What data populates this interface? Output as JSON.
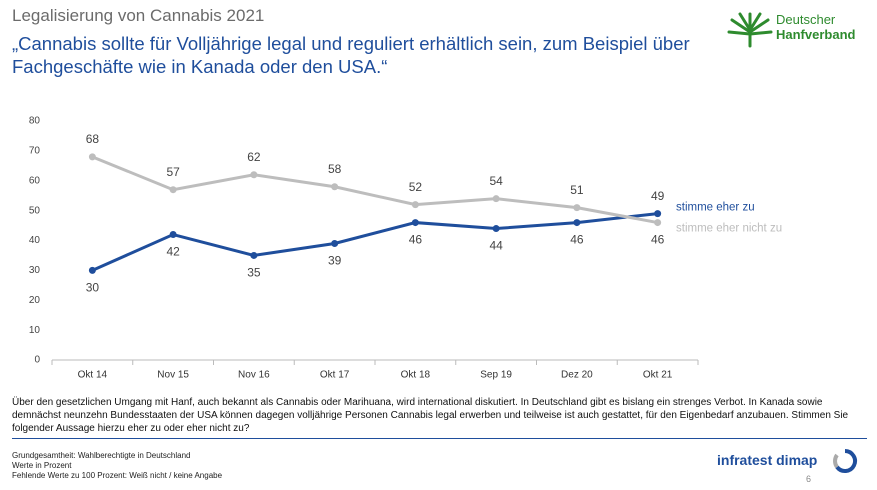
{
  "chart_data": {
    "type": "line",
    "supertitle": "Legalisierung von Cannabis 2021",
    "title": "„Cannabis sollte für Volljährige legal und reguliert erhältlich sein, zum Beispiel über Fachgeschäfte wie in Kanada oder den USA.“",
    "logo": [
      "Deutscher",
      "Hanfverband"
    ],
    "categories": [
      "Okt 14",
      "Nov 15",
      "Nov 16",
      "Okt 17",
      "Okt 18",
      "Sep 19",
      "Dez 20",
      "Okt 21"
    ],
    "series": [
      {
        "name": "stimme eher zu",
        "color": "#1f4e9c",
        "values": [
          30,
          42,
          35,
          39,
          46,
          44,
          46,
          49
        ]
      },
      {
        "name": "stimme eher nicht zu",
        "color": "#bdbdbd",
        "values": [
          68,
          57,
          62,
          58,
          52,
          54,
          51,
          46
        ]
      }
    ],
    "ylim": [
      0,
      80
    ],
    "yticks": [
      0,
      10,
      20,
      30,
      40,
      50,
      60,
      70,
      80
    ],
    "grid": false,
    "question": "Über den gesetzlichen Umgang mit Hanf, auch bekannt als Cannabis oder Marihuana, wird international diskutiert. In Deutschland gibt es bislang ein strenges Verbot. In Kanada sowie demnächst neunzehn Bundesstaaten der USA können dagegen volljährige Personen Cannabis legal erwerben und teilweise ist auch gestattet, für den Eigenbedarf anzubauen. Stimmen Sie folgender Aussage hierzu eher zu oder eher nicht zu?",
    "footnotes": [
      "Grundgesamtheit: Wahlberechtigte in Deutschland",
      "Werte in Prozent",
      "Fehlende Werte zu 100 Prozent: Weiß nicht / keine Angabe"
    ],
    "brand": "infratest dimap",
    "page": "6"
  }
}
